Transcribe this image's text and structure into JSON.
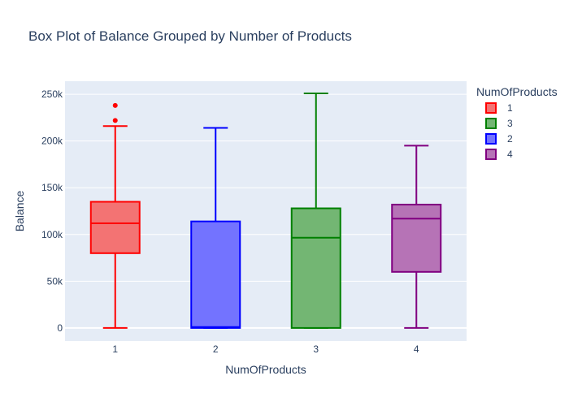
{
  "chart_data": {
    "type": "box",
    "title": "Box Plot of Balance Grouped by Number of Products",
    "xlabel": "NumOfProducts",
    "ylabel": "Balance",
    "categories": [
      "1",
      "2",
      "3",
      "4"
    ],
    "ylim": [
      -14000,
      264000
    ],
    "yticks": [
      {
        "value": 0,
        "label": "0"
      },
      {
        "value": 50000,
        "label": "50k"
      },
      {
        "value": 100000,
        "label": "100k"
      },
      {
        "value": 150000,
        "label": "150k"
      },
      {
        "value": 200000,
        "label": "200k"
      },
      {
        "value": 250000,
        "label": "250k"
      }
    ],
    "legend": {
      "title": "NumOfProducts",
      "position": "right",
      "entries": [
        "1",
        "3",
        "2",
        "4"
      ]
    },
    "series": [
      {
        "name": "1",
        "category": "1",
        "color": "#ff0000",
        "fill": "#f37373",
        "min": 0,
        "q1": 80000,
        "median": 112000,
        "q3": 135000,
        "max": 216000,
        "outliers": [
          222000,
          238000
        ]
      },
      {
        "name": "2",
        "category": "2",
        "color": "#0000ff",
        "fill": "#7373ff",
        "min": 0,
        "q1": 0,
        "median": 1000,
        "q3": 114000,
        "max": 214000,
        "outliers": []
      },
      {
        "name": "3",
        "category": "3",
        "color": "#008000",
        "fill": "#73b673",
        "min": 0,
        "q1": 0,
        "median": 96500,
        "q3": 128000,
        "max": 251000,
        "outliers": []
      },
      {
        "name": "4",
        "category": "4",
        "color": "#800080",
        "fill": "#b673b6",
        "min": 0,
        "q1": 60000,
        "median": 117000,
        "q3": 132000,
        "max": 195000,
        "outliers": []
      }
    ]
  }
}
